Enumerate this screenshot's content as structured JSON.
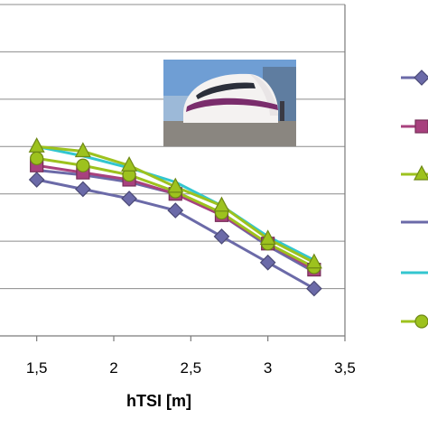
{
  "chart_data": {
    "type": "line",
    "title": "",
    "xlabel": "hTSI [m]",
    "ylabel": "",
    "xlim": [
      1.25,
      3.5
    ],
    "ylim": [
      0,
      7
    ],
    "grid": "horizontal",
    "legend": "right, markers only, labels not visible",
    "x": [
      1.5,
      1.8,
      2.1,
      2.4,
      2.7,
      3.0,
      3.3
    ],
    "x_tick_labels": [
      "1,5",
      "2",
      "2,5",
      "3",
      "3,5"
    ],
    "x_ticks": [
      1.5,
      2.0,
      2.5,
      3.0,
      3.5
    ],
    "series": [
      {
        "values": [
          3.3,
          3.1,
          2.9,
          2.65,
          2.1,
          1.55,
          1.0
        ],
        "color": "#6b6aa8",
        "marker": "diamond"
      },
      {
        "values": [
          3.6,
          3.45,
          3.3,
          3.0,
          2.55,
          1.95,
          1.4
        ],
        "color": "#a8417e",
        "marker": "square"
      },
      {
        "values": [
          4.0,
          3.9,
          3.6,
          3.15,
          2.75,
          2.05,
          1.55
        ],
        "color": "#9dc21e",
        "marker": "triangle"
      },
      {
        "values": [
          3.5,
          3.4,
          3.25,
          3.0,
          2.55,
          1.9,
          1.35
        ],
        "color": "#6b6aa8",
        "marker": "none"
      },
      {
        "values": [
          4.0,
          3.8,
          3.55,
          3.25,
          2.75,
          2.1,
          1.6
        ],
        "color": "#33c6cf",
        "marker": "none"
      },
      {
        "values": [
          3.75,
          3.6,
          3.4,
          3.05,
          2.6,
          1.95,
          1.45
        ],
        "color": "#9dc21e",
        "marker": "circle"
      }
    ]
  },
  "photo": {
    "icon": "high-speed-train-photo"
  }
}
